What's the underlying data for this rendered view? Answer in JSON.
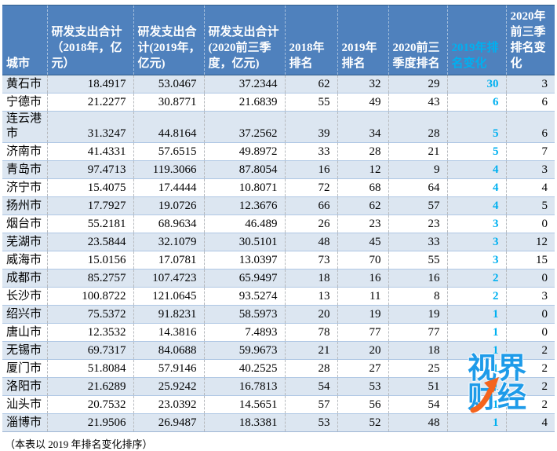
{
  "chart_data": {
    "type": "table",
    "columns": [
      "城市",
      "研发支出合计（2018年，亿元）",
      "研发支出合计(2019年，亿元)",
      "研发支出合计(2020前三季度，亿元)",
      "2018年排名",
      "2019年排名",
      "2020前三季度排名",
      "2019年排名变化",
      "2020年前三季排名变化"
    ],
    "highlight_column_index": 7,
    "rows": [
      [
        "黄石市",
        "18.4917",
        "53.0467",
        "37.2344",
        "62",
        "32",
        "29",
        "30",
        "3"
      ],
      [
        "宁德市",
        "21.2277",
        "30.8771",
        "21.6839",
        "55",
        "49",
        "43",
        "6",
        "6"
      ],
      [
        "连云港市",
        "31.3247",
        "44.8164",
        "37.2562",
        "39",
        "34",
        "28",
        "5",
        "6"
      ],
      [
        "济南市",
        "41.4331",
        "57.6515",
        "49.8972",
        "33",
        "28",
        "21",
        "5",
        "7"
      ],
      [
        "青岛市",
        "97.4713",
        "119.3066",
        "87.8054",
        "16",
        "12",
        "9",
        "4",
        "3"
      ],
      [
        "济宁市",
        "15.4075",
        "17.4444",
        "10.8071",
        "72",
        "68",
        "64",
        "4",
        "4"
      ],
      [
        "扬州市",
        "17.7927",
        "19.0726",
        "12.3676",
        "66",
        "62",
        "57",
        "4",
        "5"
      ],
      [
        "烟台市",
        "55.2181",
        "68.9634",
        "46.489",
        "26",
        "23",
        "23",
        "3",
        "0"
      ],
      [
        "芜湖市",
        "23.5844",
        "32.1079",
        "30.5101",
        "48",
        "45",
        "33",
        "3",
        "12"
      ],
      [
        "威海市",
        "15.0156",
        "17.0781",
        "13.0397",
        "73",
        "70",
        "55",
        "3",
        "15"
      ],
      [
        "成都市",
        "85.2757",
        "107.4723",
        "65.9497",
        "18",
        "16",
        "16",
        "2",
        "0"
      ],
      [
        "长沙市",
        "100.8722",
        "121.0645",
        "93.5274",
        "13",
        "11",
        "8",
        "2",
        "3"
      ],
      [
        "绍兴市",
        "75.5372",
        "91.8231",
        "58.5973",
        "20",
        "19",
        "19",
        "1",
        "0"
      ],
      [
        "唐山市",
        "12.3532",
        "14.3816",
        "7.4893",
        "78",
        "77",
        "77",
        "1",
        "0"
      ],
      [
        "无锡市",
        "69.7317",
        "84.0688",
        "59.9673",
        "21",
        "20",
        "18",
        "1",
        "2"
      ],
      [
        "厦门市",
        "51.8084",
        "57.9146",
        "40.2525",
        "28",
        "27",
        "25",
        "1",
        "2"
      ],
      [
        "洛阳市",
        "21.6289",
        "25.9242",
        "16.7813",
        "54",
        "53",
        "51",
        "1",
        "2"
      ],
      [
        "汕头市",
        "20.7532",
        "23.0392",
        "14.5651",
        "57",
        "56",
        "54",
        "1",
        "2"
      ],
      [
        "淄博市",
        "21.9506",
        "26.9487",
        "18.3381",
        "53",
        "52",
        "48",
        "1",
        "4"
      ]
    ],
    "title": "",
    "layout_hints": {
      "alternating_rows": true,
      "highlight_column_text": "2019年排名变化",
      "sorted_by": "2019年排名变化"
    }
  },
  "footer": {
    "note": "（本表以 2019 年排名变化排序）"
  },
  "watermark": {
    "line1": "视界",
    "line2": "财经"
  },
  "colors": {
    "header_bg": "#4F81BD",
    "row_alt_bg": "#DCE6F1",
    "highlight_text": "#00B0F0",
    "watermark_blue": "#1E9BE9",
    "watermark_orange": "#F4641E"
  }
}
